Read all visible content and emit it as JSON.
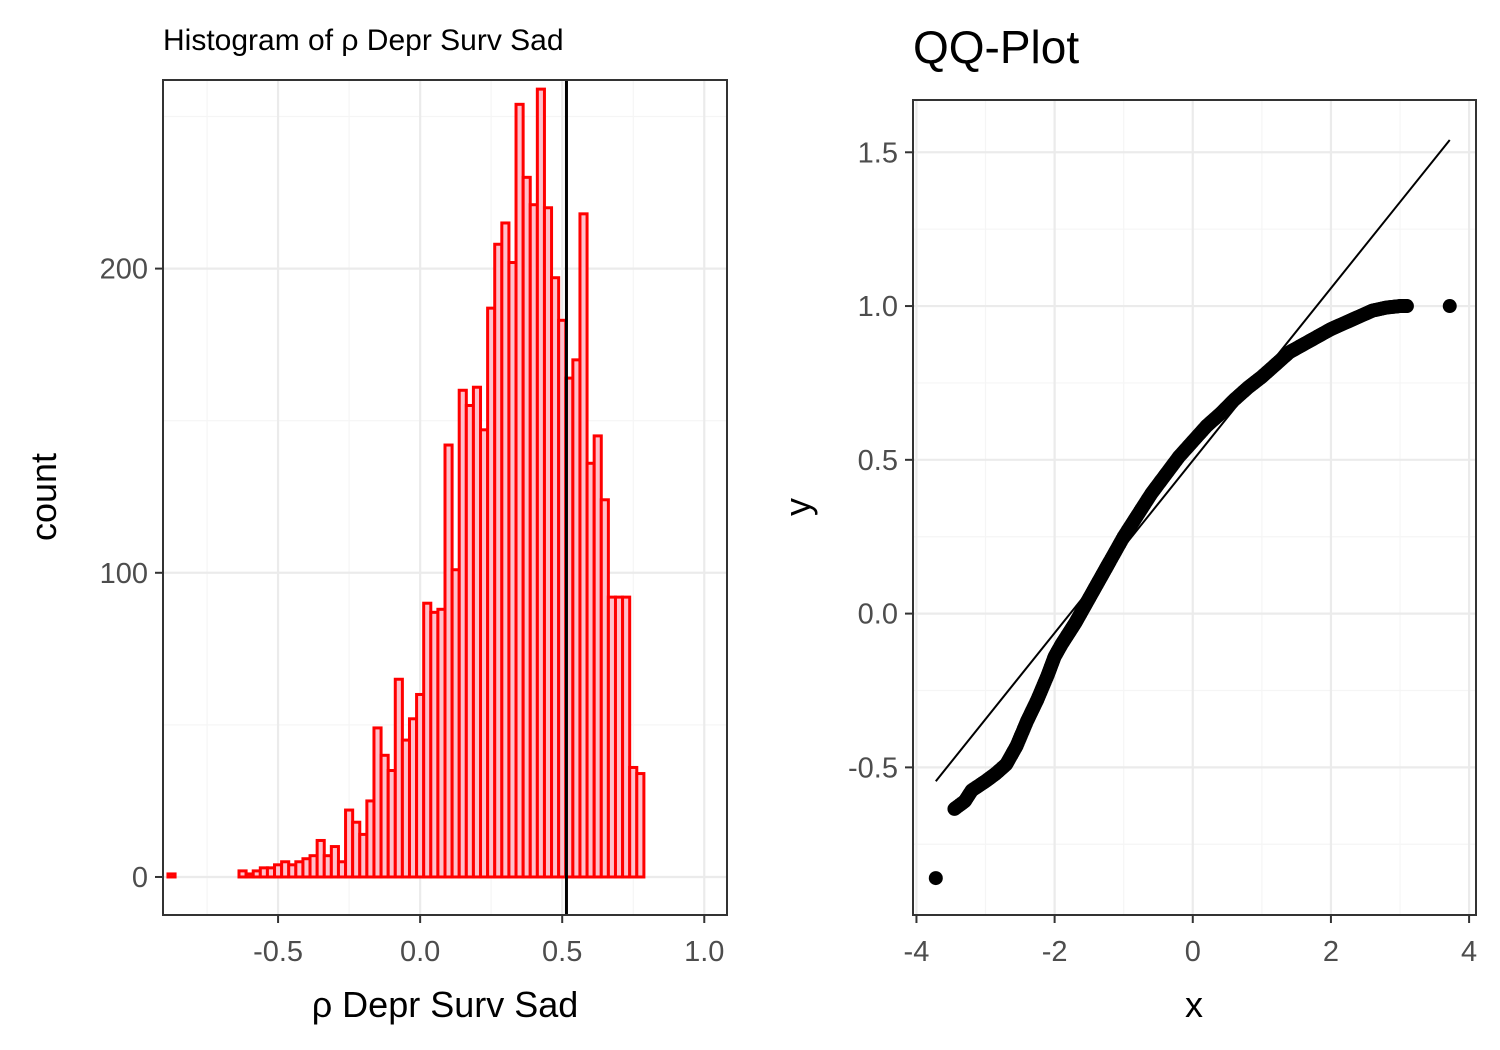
{
  "colors": {
    "bar_fill": "#ffc0cb",
    "bar_stroke": "#ff0000",
    "grid_major": "#ebebeb",
    "grid_minor": "#f5f5f5",
    "panel_border": "#333333",
    "tick_label": "#4d4d4d",
    "ink": "#000000"
  },
  "chart_data": [
    {
      "type": "bar",
      "subtype": "histogram",
      "title": "Histogram of ρ Depr Surv Sad",
      "xlabel": "ρ Depr Surv Sad",
      "ylabel": "count",
      "xlim": [
        -0.905,
        1.08
      ],
      "ylim": [
        -12.5,
        262
      ],
      "x_ticks": [
        -0.5,
        0.0,
        0.5,
        1.0
      ],
      "x_tick_labels": [
        "-0.5",
        "0.0",
        "0.5",
        "1.0"
      ],
      "y_ticks": [
        0,
        100,
        200
      ],
      "y_tick_labels": [
        "0",
        "100",
        "200"
      ],
      "grid": true,
      "bin_width": 0.025,
      "bin_start": -0.8875,
      "bin_counts": [
        1,
        0,
        0,
        0,
        0,
        0,
        0,
        0,
        0,
        0,
        2,
        1,
        2,
        3,
        3,
        4,
        5,
        4,
        5,
        6,
        7,
        12,
        7,
        10,
        5,
        22,
        18,
        14,
        25,
        49,
        40,
        35,
        65,
        45,
        52,
        60,
        90,
        87,
        88,
        142,
        101,
        160,
        155,
        161,
        147,
        187,
        208,
        215,
        202,
        254,
        230,
        221,
        259,
        220,
        197,
        183,
        164,
        170,
        218,
        136,
        145,
        124,
        92,
        92,
        92,
        36,
        34
      ],
      "vline_x": 0.515
    },
    {
      "type": "scatter",
      "subtype": "qq-plot",
      "title": "QQ-Plot",
      "xlabel": "x",
      "ylabel": "y",
      "xlim": [
        -4.05,
        4.1
      ],
      "ylim": [
        -0.98,
        1.67
      ],
      "x_ticks": [
        -4,
        -2,
        0,
        2,
        4
      ],
      "x_tick_labels": [
        "-4",
        "-2",
        "0",
        "2",
        "4"
      ],
      "y_ticks": [
        -0.5,
        0.0,
        0.5,
        1.0,
        1.5
      ],
      "y_tick_labels": [
        "-0.5",
        "0.0",
        "0.5",
        "1.0",
        "1.5"
      ],
      "grid": true,
      "reference_line": {
        "x": [
          -3.72,
          3.72
        ],
        "y": [
          -0.545,
          1.54
        ]
      },
      "quantile_curve": {
        "x": [
          -3.45,
          -3.3,
          -3.2,
          -3.0,
          -2.85,
          -2.7,
          -2.55,
          -2.4,
          -2.25,
          -2.1,
          -2.0,
          -1.9,
          -1.8,
          -1.7,
          -1.6,
          -1.5,
          -1.4,
          -1.3,
          -1.2,
          -1.0,
          -0.8,
          -0.6,
          -0.4,
          -0.2,
          0.0,
          0.2,
          0.4,
          0.6,
          0.8,
          1.0,
          1.2,
          1.4,
          1.6,
          1.8,
          2.0,
          2.2,
          2.4,
          2.6,
          2.8,
          3.0,
          3.1
        ],
        "y": [
          -0.635,
          -0.61,
          -0.575,
          -0.545,
          -0.52,
          -0.49,
          -0.43,
          -0.35,
          -0.28,
          -0.2,
          -0.14,
          -0.1,
          -0.065,
          -0.03,
          0.01,
          0.05,
          0.09,
          0.13,
          0.17,
          0.25,
          0.32,
          0.39,
          0.45,
          0.51,
          0.56,
          0.61,
          0.65,
          0.695,
          0.735,
          0.77,
          0.81,
          0.85,
          0.875,
          0.9,
          0.925,
          0.945,
          0.965,
          0.985,
          0.995,
          1.0,
          1.0
        ]
      },
      "outlier_points": [
        {
          "x": -3.72,
          "y": -0.86
        },
        {
          "x": 3.72,
          "y": 1.0
        }
      ]
    }
  ]
}
